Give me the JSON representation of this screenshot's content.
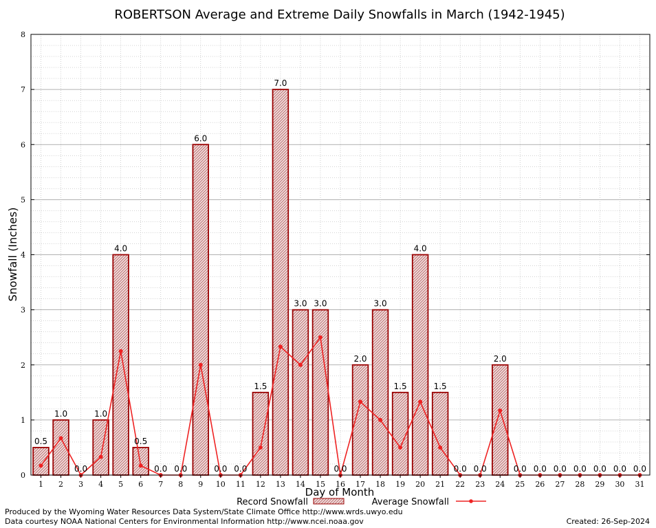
{
  "chart_data": {
    "type": "bar",
    "title": "ROBERTSON Average and Extreme Daily Snowfalls in March (1942-1945)",
    "xlabel": "Day of Month",
    "ylabel": "Snowfall (Inches)",
    "ylim": [
      0,
      8
    ],
    "yticks": [
      "0",
      "1",
      "2",
      "3",
      "4",
      "5",
      "6",
      "7",
      "8"
    ],
    "categories": [
      "1",
      "2",
      "3",
      "4",
      "5",
      "6",
      "7",
      "8",
      "9",
      "10",
      "11",
      "12",
      "13",
      "14",
      "15",
      "16",
      "17",
      "18",
      "19",
      "20",
      "21",
      "22",
      "23",
      "24",
      "25",
      "26",
      "27",
      "28",
      "29",
      "30",
      "31"
    ],
    "series": [
      {
        "name": "Record Snowfall",
        "kind": "bar",
        "values": [
          0.5,
          1.0,
          0.0,
          1.0,
          4.0,
          0.5,
          0.0,
          0.0,
          6.0,
          0.0,
          0.0,
          1.5,
          7.0,
          3.0,
          3.0,
          0.0,
          2.0,
          3.0,
          1.5,
          4.0,
          1.5,
          0.0,
          0.0,
          2.0,
          0.0,
          0.0,
          0.0,
          0.0,
          0.0,
          0.0,
          0.0
        ],
        "labels": [
          "0.5",
          "1.0",
          "0.0",
          "1.0",
          "4.0",
          "0.5",
          "0.0",
          "0.0",
          "6.0",
          "0.0",
          "0.0",
          "1.5",
          "7.0",
          "3.0",
          "3.0",
          "0.0",
          "2.0",
          "3.0",
          "1.5",
          "4.0",
          "1.5",
          "0.0",
          "0.0",
          "2.0",
          "0.0",
          "0.0",
          "0.0",
          "0.0",
          "0.0",
          "0.0",
          "0.0"
        ]
      },
      {
        "name": "Average Snowfall",
        "kind": "line",
        "values": [
          0.17,
          0.67,
          0.0,
          0.33,
          2.25,
          0.17,
          0.0,
          0.0,
          2.0,
          0.0,
          0.0,
          0.5,
          2.33,
          2.0,
          2.5,
          0.0,
          1.33,
          1.0,
          0.5,
          1.33,
          0.5,
          0.0,
          0.0,
          1.17,
          0.0,
          0.0,
          0.0,
          0.0,
          0.0,
          0.0,
          0.0
        ]
      }
    ],
    "grid": true,
    "legend_position": "bottom-center",
    "colors": {
      "bar_fill": "#e8c8c8",
      "bar_edge": "#9a0000",
      "line": "#ee2222"
    }
  },
  "footer": {
    "produced_by": "Produced by the Wyoming Water Resources Data System/State Climate Office http://www.wrds.uwyo.edu",
    "courtesy": "Data courtesy NOAA National Centers for Environmental Information http://www.ncei.noaa.gov",
    "created": "Created:  26-Sep-2024"
  }
}
